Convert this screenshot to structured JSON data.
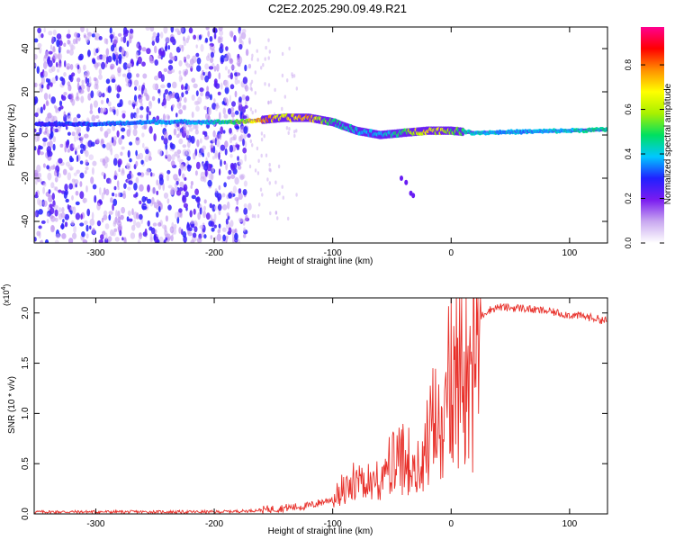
{
  "title": "C2E2.2025.290.09.49.R21",
  "colors": {
    "snr_line": "#e8302a",
    "track_main": "#18c8c0",
    "colormap": [
      "#ffffff",
      "#c9a8f0",
      "#7a1cf0",
      "#2020ff",
      "#00c8ff",
      "#00e060",
      "#a8f000",
      "#ffff00",
      "#ff9000",
      "#ff0000",
      "#ff0090"
    ]
  },
  "chart_data": [
    {
      "type": "heatmap",
      "name": "spectrogram",
      "xlabel": "Height of straight line (km)",
      "ylabel": "Frequency (Hz)",
      "xlim": [
        -352,
        132
      ],
      "ylim": [
        -50,
        50
      ],
      "xticks": [
        -300,
        -200,
        -100,
        0,
        100
      ],
      "xtick_labels": [
        "-300",
        "-200",
        "-100",
        "0",
        "100"
      ],
      "yticks": [
        -40,
        -20,
        0,
        20,
        40
      ],
      "ytick_labels": [
        "-40",
        "-20",
        "0",
        "20",
        "40"
      ],
      "colorbar": {
        "label": "Normalized spectral amplitude",
        "range": [
          0,
          0.97
        ],
        "ticks": [
          0,
          0.2,
          0.4,
          0.6,
          0.8
        ],
        "tick_labels": [
          "0.0",
          "0.2",
          "0.4",
          "0.6",
          "0.8"
        ]
      },
      "carrier_track": {
        "x": [
          -350,
          -300,
          -250,
          -210,
          -180,
          -160,
          -140,
          -120,
          -100,
          -80,
          -60,
          -40,
          -20,
          0,
          20,
          60,
          100,
          132
        ],
        "freq_hz": [
          5,
          5,
          6,
          6,
          6,
          7,
          8,
          8,
          6,
          2,
          0,
          1,
          2,
          2,
          1,
          1.5,
          2,
          2.5
        ],
        "amplitude": [
          0.3,
          0.35,
          0.4,
          0.4,
          0.55,
          0.85,
          0.7,
          0.8,
          0.5,
          0.45,
          0.4,
          0.55,
          0.75,
          0.6,
          0.45,
          0.4,
          0.45,
          0.5
        ]
      },
      "noise_region_x": [
        -352,
        -170
      ]
    },
    {
      "type": "line",
      "name": "snr",
      "xlabel": "Height of straight line (km)",
      "ylabel": "SNR (10 * v/v)",
      "yscale_label": "(x10",
      "yscale_exp": "4",
      "xlim": [
        -352,
        132
      ],
      "ylim": [
        0,
        2.15
      ],
      "xticks": [
        -300,
        -200,
        -100,
        0,
        100
      ],
      "xtick_labels": [
        "-300",
        "-200",
        "-100",
        "0",
        "100"
      ],
      "yticks": [
        0,
        0.5,
        1.0,
        1.5,
        2.0
      ],
      "ytick_labels": [
        "0.0",
        "0.5",
        "1.0",
        "1.5",
        "2.0"
      ],
      "series": [
        {
          "name": "SNR",
          "x": [
            -352,
            -300,
            -250,
            -200,
            -170,
            -150,
            -120,
            -100,
            -90,
            -80,
            -70,
            -60,
            -50,
            -40,
            -30,
            -20,
            -10,
            0,
            10,
            20,
            30,
            40,
            50,
            60,
            70,
            80,
            90,
            100,
            110,
            120,
            132
          ],
          "y": [
            0.02,
            0.02,
            0.02,
            0.02,
            0.03,
            0.05,
            0.08,
            0.15,
            0.3,
            0.45,
            0.35,
            0.4,
            0.5,
            0.55,
            0.55,
            0.7,
            1.1,
            1.35,
            1.6,
            1.9,
            2.02,
            2.06,
            2.05,
            2.05,
            2.03,
            2.02,
            2.0,
            1.98,
            1.97,
            1.95,
            1.92
          ]
        }
      ]
    }
  ]
}
